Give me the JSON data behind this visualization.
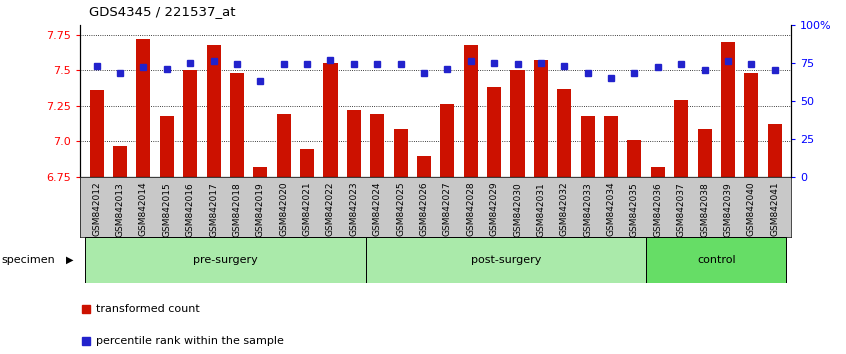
{
  "title": "GDS4345 / 221537_at",
  "samples": [
    "GSM842012",
    "GSM842013",
    "GSM842014",
    "GSM842015",
    "GSM842016",
    "GSM842017",
    "GSM842018",
    "GSM842019",
    "GSM842020",
    "GSM842021",
    "GSM842022",
    "GSM842023",
    "GSM842024",
    "GSM842025",
    "GSM842026",
    "GSM842027",
    "GSM842028",
    "GSM842029",
    "GSM842030",
    "GSM842031",
    "GSM842032",
    "GSM842033",
    "GSM842034",
    "GSM842035",
    "GSM842036",
    "GSM842037",
    "GSM842038",
    "GSM842039",
    "GSM842040",
    "GSM842041"
  ],
  "bar_values": [
    7.36,
    6.97,
    7.72,
    7.18,
    7.5,
    7.68,
    7.48,
    6.82,
    7.19,
    6.95,
    7.55,
    7.22,
    7.19,
    7.09,
    6.9,
    7.26,
    7.68,
    7.38,
    7.5,
    7.57,
    7.37,
    7.18,
    7.18,
    7.01,
    6.82,
    7.29,
    7.09,
    7.7,
    7.48,
    7.12
  ],
  "percentile_values": [
    73,
    68,
    72,
    71,
    75,
    76,
    74,
    63,
    74,
    74,
    77,
    74,
    74,
    74,
    68,
    71,
    76,
    75,
    74,
    75,
    73,
    68,
    65,
    68,
    72,
    74,
    70,
    76,
    74,
    70
  ],
  "groups": [
    {
      "label": "pre-surgery",
      "start": 0,
      "end": 11,
      "color": "#aaeaaa"
    },
    {
      "label": "post-surgery",
      "start": 12,
      "end": 23,
      "color": "#aaeaaa"
    },
    {
      "label": "control",
      "start": 24,
      "end": 29,
      "color": "#66dd66"
    }
  ],
  "bar_color": "#cc1100",
  "dot_color": "#2222cc",
  "ylim_left": [
    6.75,
    7.82
  ],
  "ylim_right": [
    0,
    100
  ],
  "yticks_left": [
    6.75,
    7.0,
    7.25,
    7.5,
    7.75
  ],
  "yticks_right": [
    0,
    25,
    50,
    75,
    100
  ],
  "ytick_labels_right": [
    "0",
    "25",
    "50",
    "75",
    "100%"
  ],
  "bg_gray": "#c8c8c8"
}
